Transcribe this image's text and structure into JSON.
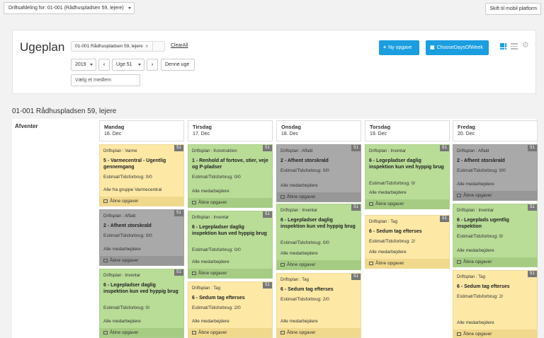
{
  "topbar": {
    "department_select": "Driftsafdeling for: 01-001 (Rådhuspladsen 59, lejere)",
    "mobile_button": "Skift til mobil platform"
  },
  "header": {
    "title": "Ugeplan",
    "filter_chip": "01-001 Rådhuspladsen 59, lejere",
    "chip_remove": "×",
    "clear_all": "ClearAll",
    "new_task_button": "Ny opgave",
    "choose_days_button": "ChooseDaysOfWeek",
    "year": "2019",
    "week": "Uge 51",
    "prev": "‹",
    "next": "›",
    "this_week_button": "Denne uge",
    "member_placeholder": "Vælg et medlem"
  },
  "location_title": "01-001 Rådhuspladsen 59, lejere",
  "row_label": "Afventer",
  "open_tasks_label": "Åbne opgaver",
  "days": [
    {
      "name": "Mandag",
      "date": "16. Dec",
      "cards": [
        {
          "color": "yellow",
          "week": "51",
          "category": "Driftsplan : Varme",
          "title": "5 - Varmecentral - Ugentlig gennemgang",
          "estimate": "Estimat/Tidsforbrug: 0/0",
          "assignee": "Alle fra gruppe Varmecentral"
        },
        {
          "color": "gray",
          "week": "51",
          "category": "Driftsplan : Affald",
          "title": "2 - Afhent storskrald",
          "estimate": "Estimat/Tidsforbrug: 0/0",
          "assignee": "Alle medarbejdere"
        },
        {
          "color": "green",
          "week": "51",
          "category": "Driftsplan : Inventar",
          "title": "6 - Legepladser daglig inspektion kun ved hyppig brug",
          "estimate": "Estimat/Tidsforbrug: 0/",
          "assignee": "Alle medarbejdere"
        }
      ]
    },
    {
      "name": "Tirsdag",
      "date": "17. Dec",
      "cards": [
        {
          "color": "green",
          "week": "51",
          "category": "Driftsplan : Konstruktion",
          "title": "1 - Renhold af fortove, stier, veje og P-pladser",
          "estimate": "Estimat/Tidsforbrug: 0/0",
          "assignee": "Alle medarbejdere"
        },
        {
          "color": "green",
          "week": "51",
          "category": "Driftsplan : Inventar",
          "title": "6 - Legepladser daglig inspektion kun ved hyppig brug",
          "estimate": "Estimat/Tidsforbrug: 0/0",
          "assignee": "Alle medarbejdere"
        },
        {
          "color": "yellow",
          "week": "51",
          "category": "Driftsplan : Tag",
          "title": "6 - Sedum tag efterses",
          "estimate": "Estimat/Tidsforbrug: 2/0",
          "assignee": "Alle medarbejdere"
        }
      ]
    },
    {
      "name": "Onsdag",
      "date": "18. Dec",
      "cards": [
        {
          "color": "gray",
          "week": "51",
          "category": "Driftsplan : Affald",
          "title": "2 - Afhent storskrald",
          "estimate": "Estimat/Tidsforbrug: 0/0",
          "assignee": "Alle medarbejdere"
        },
        {
          "color": "green",
          "week": "51",
          "category": "Driftsplan : Inventar",
          "title": "6 - Legepladser daglig inspektion kun ved hyppig brug",
          "estimate": "Estimat/Tidsforbrug: 0/0",
          "assignee": "Alle medarbejdere"
        },
        {
          "color": "yellow",
          "week": "51",
          "category": "Driftsplan : Tag",
          "title": "6 - Sedum tag efterses",
          "estimate": "Estimat/Tidsforbrug: 2/0",
          "assignee": "Alle medarbejdere"
        }
      ]
    },
    {
      "name": "Torsdag",
      "date": "19. Dec",
      "cards": [
        {
          "color": "green",
          "week": "51",
          "category": "Driftsplan : Inventar",
          "title": "6 - Legepladser daglig inspektion kun ved hyppig brug",
          "estimate": "Estimat/Tidsforbrug: 0/",
          "assignee": "Alle medarbejdere"
        },
        {
          "color": "yellow",
          "week": "51",
          "category": "Driftsplan : Tag",
          "title": "6 - Sedum tag efterses",
          "estimate": "Estimat/Tidsforbrug: 2/",
          "assignee": "Alle medarbejdere"
        }
      ]
    },
    {
      "name": "Fredag",
      "date": "20. Dec",
      "cards": [
        {
          "color": "gray",
          "week": "51",
          "category": "Driftsplan : Affald",
          "title": "2 - Afhent storskrald",
          "estimate": "Estimat/Tidsforbrug: 0/0",
          "assignee": "Alle medarbejdere"
        },
        {
          "color": "green",
          "week": "51",
          "category": "Driftsplan : Inventar",
          "title": "6 - Legeplads ugentlig inspektion",
          "estimate": "Estimat/Tidsforbrug: 0/",
          "assignee": "Alle medarbejdere"
        },
        {
          "color": "yellow",
          "week": "51",
          "category": "Driftsplan : Tag",
          "title": "6 - Sedum tag efterses",
          "estimate": "Estimat/Tidsforbrug: 2/",
          "assignee": "Alle medarbejdere"
        }
      ]
    }
  ]
}
